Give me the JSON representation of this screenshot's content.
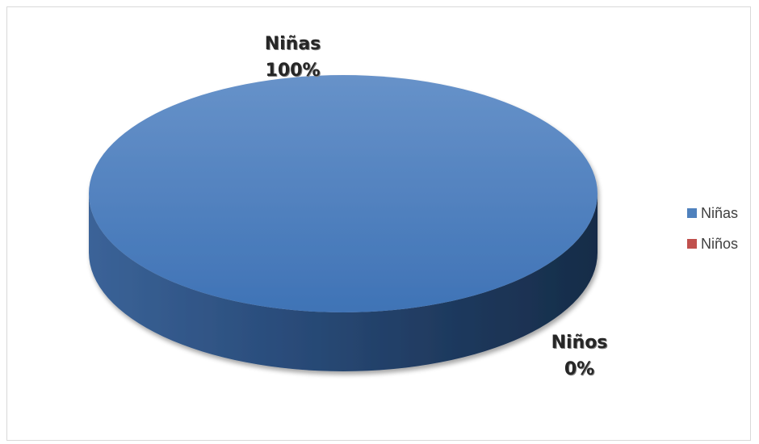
{
  "chart_data": {
    "type": "pie",
    "title": "",
    "categories": [
      "Niñas",
      "Niños"
    ],
    "values": [
      100,
      0
    ],
    "labels": [
      {
        "name": "Niñas",
        "value": "100%"
      },
      {
        "name": "Niños",
        "value": "0%"
      }
    ],
    "colors": [
      "#4f81bd",
      "#c0504d"
    ],
    "style": "3d",
    "legend": {
      "position": "right",
      "items": [
        {
          "label": "Niñas",
          "color": "#4f81bd"
        },
        {
          "label": "Niños",
          "color": "#c0504d"
        }
      ]
    }
  }
}
